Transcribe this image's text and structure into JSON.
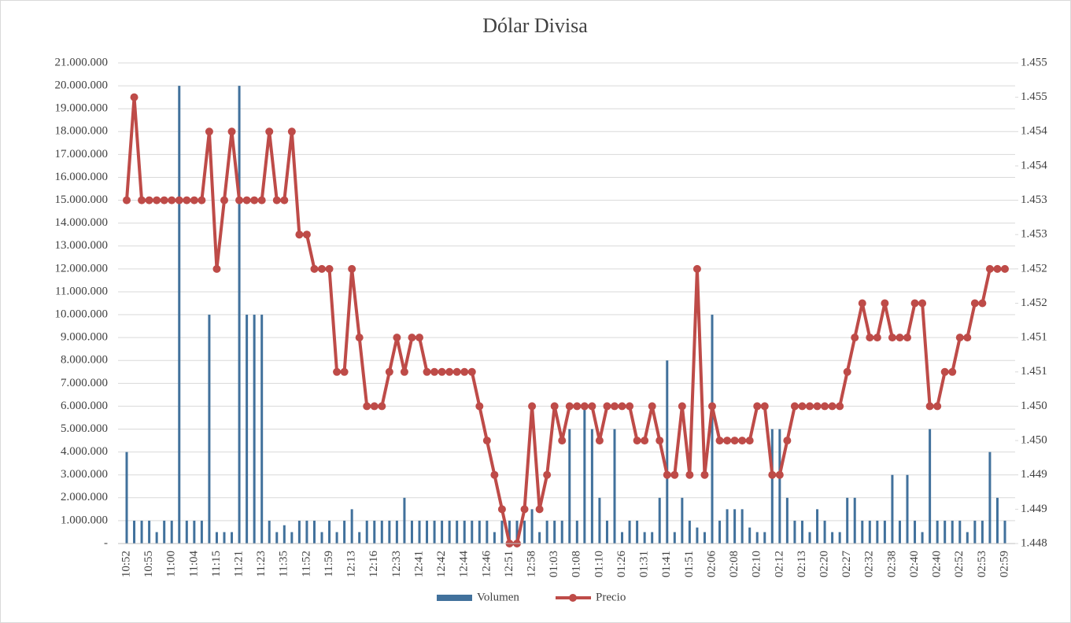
{
  "chart_data": {
    "type": "combo",
    "title": "Dólar Divisa",
    "categories": [
      "10:52",
      null,
      null,
      "10:55",
      null,
      null,
      "11:00",
      null,
      null,
      "11:04",
      null,
      null,
      "11:15",
      null,
      null,
      "11:21",
      null,
      null,
      "11:23",
      null,
      null,
      "11:35",
      null,
      null,
      "11:52",
      null,
      null,
      "11:59",
      null,
      null,
      "12:13",
      null,
      null,
      "12:16",
      null,
      null,
      "12:33",
      null,
      null,
      "12:41",
      null,
      null,
      "12:42",
      null,
      null,
      "12:44",
      null,
      null,
      "12:46",
      null,
      null,
      "12:51",
      null,
      null,
      "12:58",
      null,
      null,
      "01:03",
      null,
      null,
      "01:08",
      null,
      null,
      "01:10",
      null,
      null,
      "01:26",
      null,
      null,
      "01:31",
      null,
      null,
      "01:41",
      null,
      null,
      "01:51",
      null,
      null,
      "02:06",
      null,
      null,
      "02:08",
      null,
      null,
      "02:10",
      null,
      null,
      "02:12",
      null,
      null,
      "02:13",
      null,
      null,
      "02:20",
      null,
      null,
      "02:27",
      null,
      null,
      "02:32",
      null,
      null,
      "02:38",
      null,
      null,
      "02:40",
      null,
      null,
      "02:40",
      null,
      null,
      "02:52",
      null,
      null,
      "02:53",
      null,
      null,
      "02:59"
    ],
    "series": [
      {
        "name": "Volumen",
        "type": "bar",
        "color": "#41719c",
        "values": [
          4000000,
          1000000,
          1000000,
          1000000,
          500000,
          1000000,
          1000000,
          20000000,
          1000000,
          1000000,
          1000000,
          10000000,
          500000,
          500000,
          500000,
          20000000,
          10000000,
          10000000,
          10000000,
          1000000,
          500000,
          800000,
          500000,
          1000000,
          1000000,
          1000000,
          500000,
          1000000,
          500000,
          1000000,
          1500000,
          500000,
          1000000,
          1000000,
          1000000,
          1000000,
          1000000,
          2000000,
          1000000,
          1000000,
          1000000,
          1000000,
          1000000,
          1000000,
          1000000,
          1000000,
          1000000,
          1000000,
          1000000,
          500000,
          1000000,
          1000000,
          1000000,
          1000000,
          1500000,
          500000,
          1000000,
          1000000,
          1000000,
          5000000,
          1000000,
          6000000,
          5000000,
          2000000,
          1000000,
          5000000,
          500000,
          1000000,
          1000000,
          500000,
          500000,
          2000000,
          8000000,
          500000,
          2000000,
          1000000,
          700000,
          500000,
          10000000,
          1000000,
          1500000,
          1500000,
          1500000,
          700000,
          500000,
          500000,
          5000000,
          5000000,
          2000000,
          1000000,
          1000000,
          500000,
          1500000,
          1000000,
          500000,
          500000,
          2000000,
          2000000,
          1000000,
          1000000,
          1000000,
          1000000,
          3000000,
          1000000,
          3000000,
          1000000,
          500000,
          5000000,
          1000000,
          1000000,
          1000000,
          1000000,
          500000,
          1000000,
          1000000,
          4000000,
          2000000,
          1000000
        ]
      },
      {
        "name": "Precio",
        "type": "line",
        "axis": "y2",
        "color": "#be4b48",
        "values": [
          1.453,
          1.4545,
          1.453,
          1.453,
          1.453,
          1.453,
          1.453,
          1.453,
          1.453,
          1.453,
          1.453,
          1.454,
          1.452,
          1.453,
          1.454,
          1.453,
          1.453,
          1.453,
          1.453,
          1.454,
          1.453,
          1.453,
          1.454,
          1.4525,
          1.4525,
          1.452,
          1.452,
          1.452,
          1.4505,
          1.4505,
          1.452,
          1.451,
          1.45,
          1.45,
          1.45,
          1.4505,
          1.451,
          1.4505,
          1.451,
          1.451,
          1.4505,
          1.4505,
          1.4505,
          1.4505,
          1.4505,
          1.4505,
          1.4505,
          1.45,
          1.4495,
          1.449,
          1.4485,
          1.448,
          1.448,
          1.4485,
          1.45,
          1.4485,
          1.449,
          1.45,
          1.4495,
          1.45,
          1.45,
          1.45,
          1.45,
          1.4495,
          1.45,
          1.45,
          1.45,
          1.45,
          1.4495,
          1.4495,
          1.45,
          1.4495,
          1.449,
          1.449,
          1.45,
          1.449,
          1.452,
          1.449,
          1.45,
          1.4495,
          1.4495,
          1.4495,
          1.4495,
          1.4495,
          1.45,
          1.45,
          1.449,
          1.449,
          1.4495,
          1.45,
          1.45,
          1.45,
          1.45,
          1.45,
          1.45,
          1.45,
          1.4505,
          1.451,
          1.4515,
          1.451,
          1.451,
          1.4515,
          1.451,
          1.451,
          1.451,
          1.4515,
          1.4515,
          1.45,
          1.45,
          1.4505,
          1.4505,
          1.451,
          1.451,
          1.4515,
          1.4515,
          1.452,
          1.452,
          1.452
        ]
      }
    ],
    "ylim": [
      0,
      21000000
    ],
    "yticks": [
      {
        "value": 0,
        "label": "-"
      },
      {
        "value": 1000000,
        "label": "1.000.000"
      },
      {
        "value": 2000000,
        "label": "2.000.000"
      },
      {
        "value": 3000000,
        "label": "3.000.000"
      },
      {
        "value": 4000000,
        "label": "4.000.000"
      },
      {
        "value": 5000000,
        "label": "5.000.000"
      },
      {
        "value": 6000000,
        "label": "6.000.000"
      },
      {
        "value": 7000000,
        "label": "7.000.000"
      },
      {
        "value": 8000000,
        "label": "8.000.000"
      },
      {
        "value": 9000000,
        "label": "9.000.000"
      },
      {
        "value": 10000000,
        "label": "10.000.000"
      },
      {
        "value": 11000000,
        "label": "11.000.000"
      },
      {
        "value": 12000000,
        "label": "12.000.000"
      },
      {
        "value": 13000000,
        "label": "13.000.000"
      },
      {
        "value": 14000000,
        "label": "14.000.000"
      },
      {
        "value": 15000000,
        "label": "15.000.000"
      },
      {
        "value": 16000000,
        "label": "16.000.000"
      },
      {
        "value": 17000000,
        "label": "17.000.000"
      },
      {
        "value": 18000000,
        "label": "18.000.000"
      },
      {
        "value": 19000000,
        "label": "19.000.000"
      },
      {
        "value": 20000000,
        "label": "20.000.000"
      },
      {
        "value": 21000000,
        "label": "21.000.000"
      }
    ],
    "y2lim": [
      1.448,
      1.455
    ],
    "y2ticks": [
      1.448,
      {
        "value": 1.4485,
        "label": "1.449"
      },
      1.449,
      {
        "value": 1.4495,
        "label": "1.450"
      },
      {
        "value": 1.45,
        "label": "1.450"
      },
      {
        "value": 1.4505,
        "label": "1.451"
      },
      1.451,
      {
        "value": 1.4515,
        "label": "1.452"
      },
      1.452,
      {
        "value": 1.4525,
        "label": "1.453"
      },
      1.453,
      {
        "value": 1.4535,
        "label": "1.454"
      },
      1.454,
      {
        "value": 1.4545,
        "label": "1.455"
      },
      1.455
    ],
    "grid": true,
    "legend": "bottom"
  }
}
